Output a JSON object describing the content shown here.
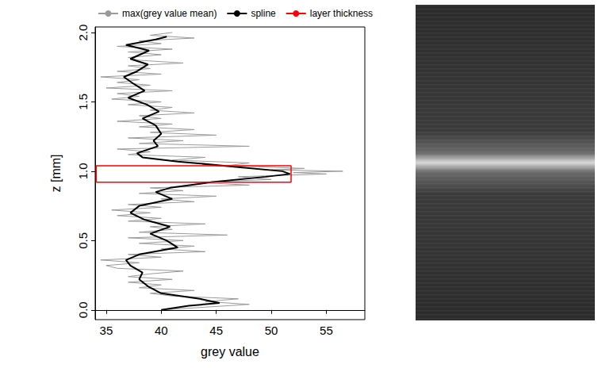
{
  "chart_data": {
    "type": "line",
    "xlabel": "grey value",
    "ylabel": "z [mm]",
    "xlim": [
      34,
      58.5
    ],
    "ylim": [
      -0.07,
      2.04
    ],
    "xticks": [
      35,
      40,
      45,
      50,
      55
    ],
    "yticks": [
      {
        "value": 0,
        "label": "0.0"
      },
      0.5,
      {
        "value": 1,
        "label": "1.0"
      },
      1.5,
      {
        "value": 2,
        "label": "2.0"
      }
    ],
    "grid": false,
    "legend": "top",
    "series": [
      {
        "name": "max(grey value mean)",
        "color": "#9a9a9a",
        "line_style": "solid",
        "x": [
          40,
          44,
          48,
          44,
          47,
          41,
          39,
          43,
          38,
          40,
          37,
          41,
          37,
          39,
          42,
          36,
          35,
          38,
          34.5,
          40,
          37,
          44,
          40,
          43,
          38,
          42,
          37,
          46,
          38,
          41,
          39,
          44,
          37,
          40,
          36,
          39,
          35.5,
          40,
          37,
          43,
          40,
          45,
          38,
          42,
          39,
          48,
          43,
          50,
          47,
          55,
          52,
          56.5,
          50,
          53,
          46,
          48,
          41,
          44,
          37,
          39,
          36,
          48,
          38,
          42,
          37,
          45,
          39,
          43,
          38,
          41,
          36,
          40,
          38,
          43,
          39,
          41,
          37,
          40,
          35.5,
          38,
          36,
          41,
          35,
          39,
          36,
          38,
          34.5,
          40,
          36,
          39,
          37,
          42,
          38,
          37,
          40,
          37,
          41,
          36,
          40,
          38,
          43,
          39,
          41
        ],
        "y": [
          0.0,
          0.02,
          0.04,
          0.06,
          0.08,
          0.1,
          0.12,
          0.14,
          0.16,
          0.18,
          0.2,
          0.22,
          0.24,
          0.26,
          0.28,
          0.3,
          0.32,
          0.34,
          0.36,
          0.38,
          0.4,
          0.42,
          0.44,
          0.46,
          0.48,
          0.5,
          0.52,
          0.54,
          0.56,
          0.58,
          0.6,
          0.62,
          0.64,
          0.66,
          0.68,
          0.7,
          0.72,
          0.74,
          0.76,
          0.78,
          0.8,
          0.82,
          0.84,
          0.86,
          0.88,
          0.9,
          0.92,
          0.94,
          0.96,
          0.98,
          0.99,
          1.0,
          1.01,
          1.02,
          1.04,
          1.06,
          1.08,
          1.1,
          1.12,
          1.14,
          1.16,
          1.18,
          1.2,
          1.22,
          1.24,
          1.26,
          1.28,
          1.3,
          1.32,
          1.34,
          1.36,
          1.38,
          1.4,
          1.42,
          1.44,
          1.46,
          1.48,
          1.5,
          1.52,
          1.54,
          1.56,
          1.58,
          1.6,
          1.62,
          1.64,
          1.66,
          1.68,
          1.7,
          1.72,
          1.74,
          1.76,
          1.78,
          1.8,
          1.82,
          1.84,
          1.86,
          1.88,
          1.9,
          1.92,
          1.94,
          1.96,
          1.98,
          2.0
        ]
      },
      {
        "name": "spline",
        "color": "#000000",
        "line_style": "solid",
        "x": [
          40.0,
          42.5,
          45.3,
          43.5,
          40.0,
          38.8,
          38.0,
          38.3,
          37.2,
          36.8,
          38.0,
          41.5,
          40.5,
          39.0,
          40.8,
          38.5,
          37.2,
          38.0,
          41.0,
          39.5,
          40.8,
          44.5,
          49.5,
          51.7,
          51.0,
          47.0,
          41.5,
          38.3,
          37.8,
          39.7,
          39.3,
          40.0,
          39.5,
          38.3,
          39.8,
          38.7,
          37.0,
          38.5,
          37.5,
          36.6,
          37.8,
          38.8,
          37.2,
          38.9,
          36.8,
          39.5,
          40.5
        ],
        "y": [
          0.0,
          0.03,
          0.05,
          0.08,
          0.12,
          0.17,
          0.22,
          0.27,
          0.32,
          0.36,
          0.4,
          0.45,
          0.5,
          0.55,
          0.6,
          0.65,
          0.7,
          0.75,
          0.8,
          0.85,
          0.88,
          0.92,
          0.96,
          0.98,
          1.0,
          1.03,
          1.07,
          1.1,
          1.13,
          1.18,
          1.22,
          1.27,
          1.33,
          1.38,
          1.43,
          1.48,
          1.53,
          1.58,
          1.63,
          1.68,
          1.72,
          1.77,
          1.81,
          1.87,
          1.91,
          1.95,
          1.97
        ]
      },
      {
        "name": "layer thickness",
        "type": "rect",
        "color": "#ff0000",
        "line_style": "solid",
        "x": [
          34.1,
          51.8
        ],
        "y": [
          0.92,
          1.04
        ]
      }
    ]
  }
}
